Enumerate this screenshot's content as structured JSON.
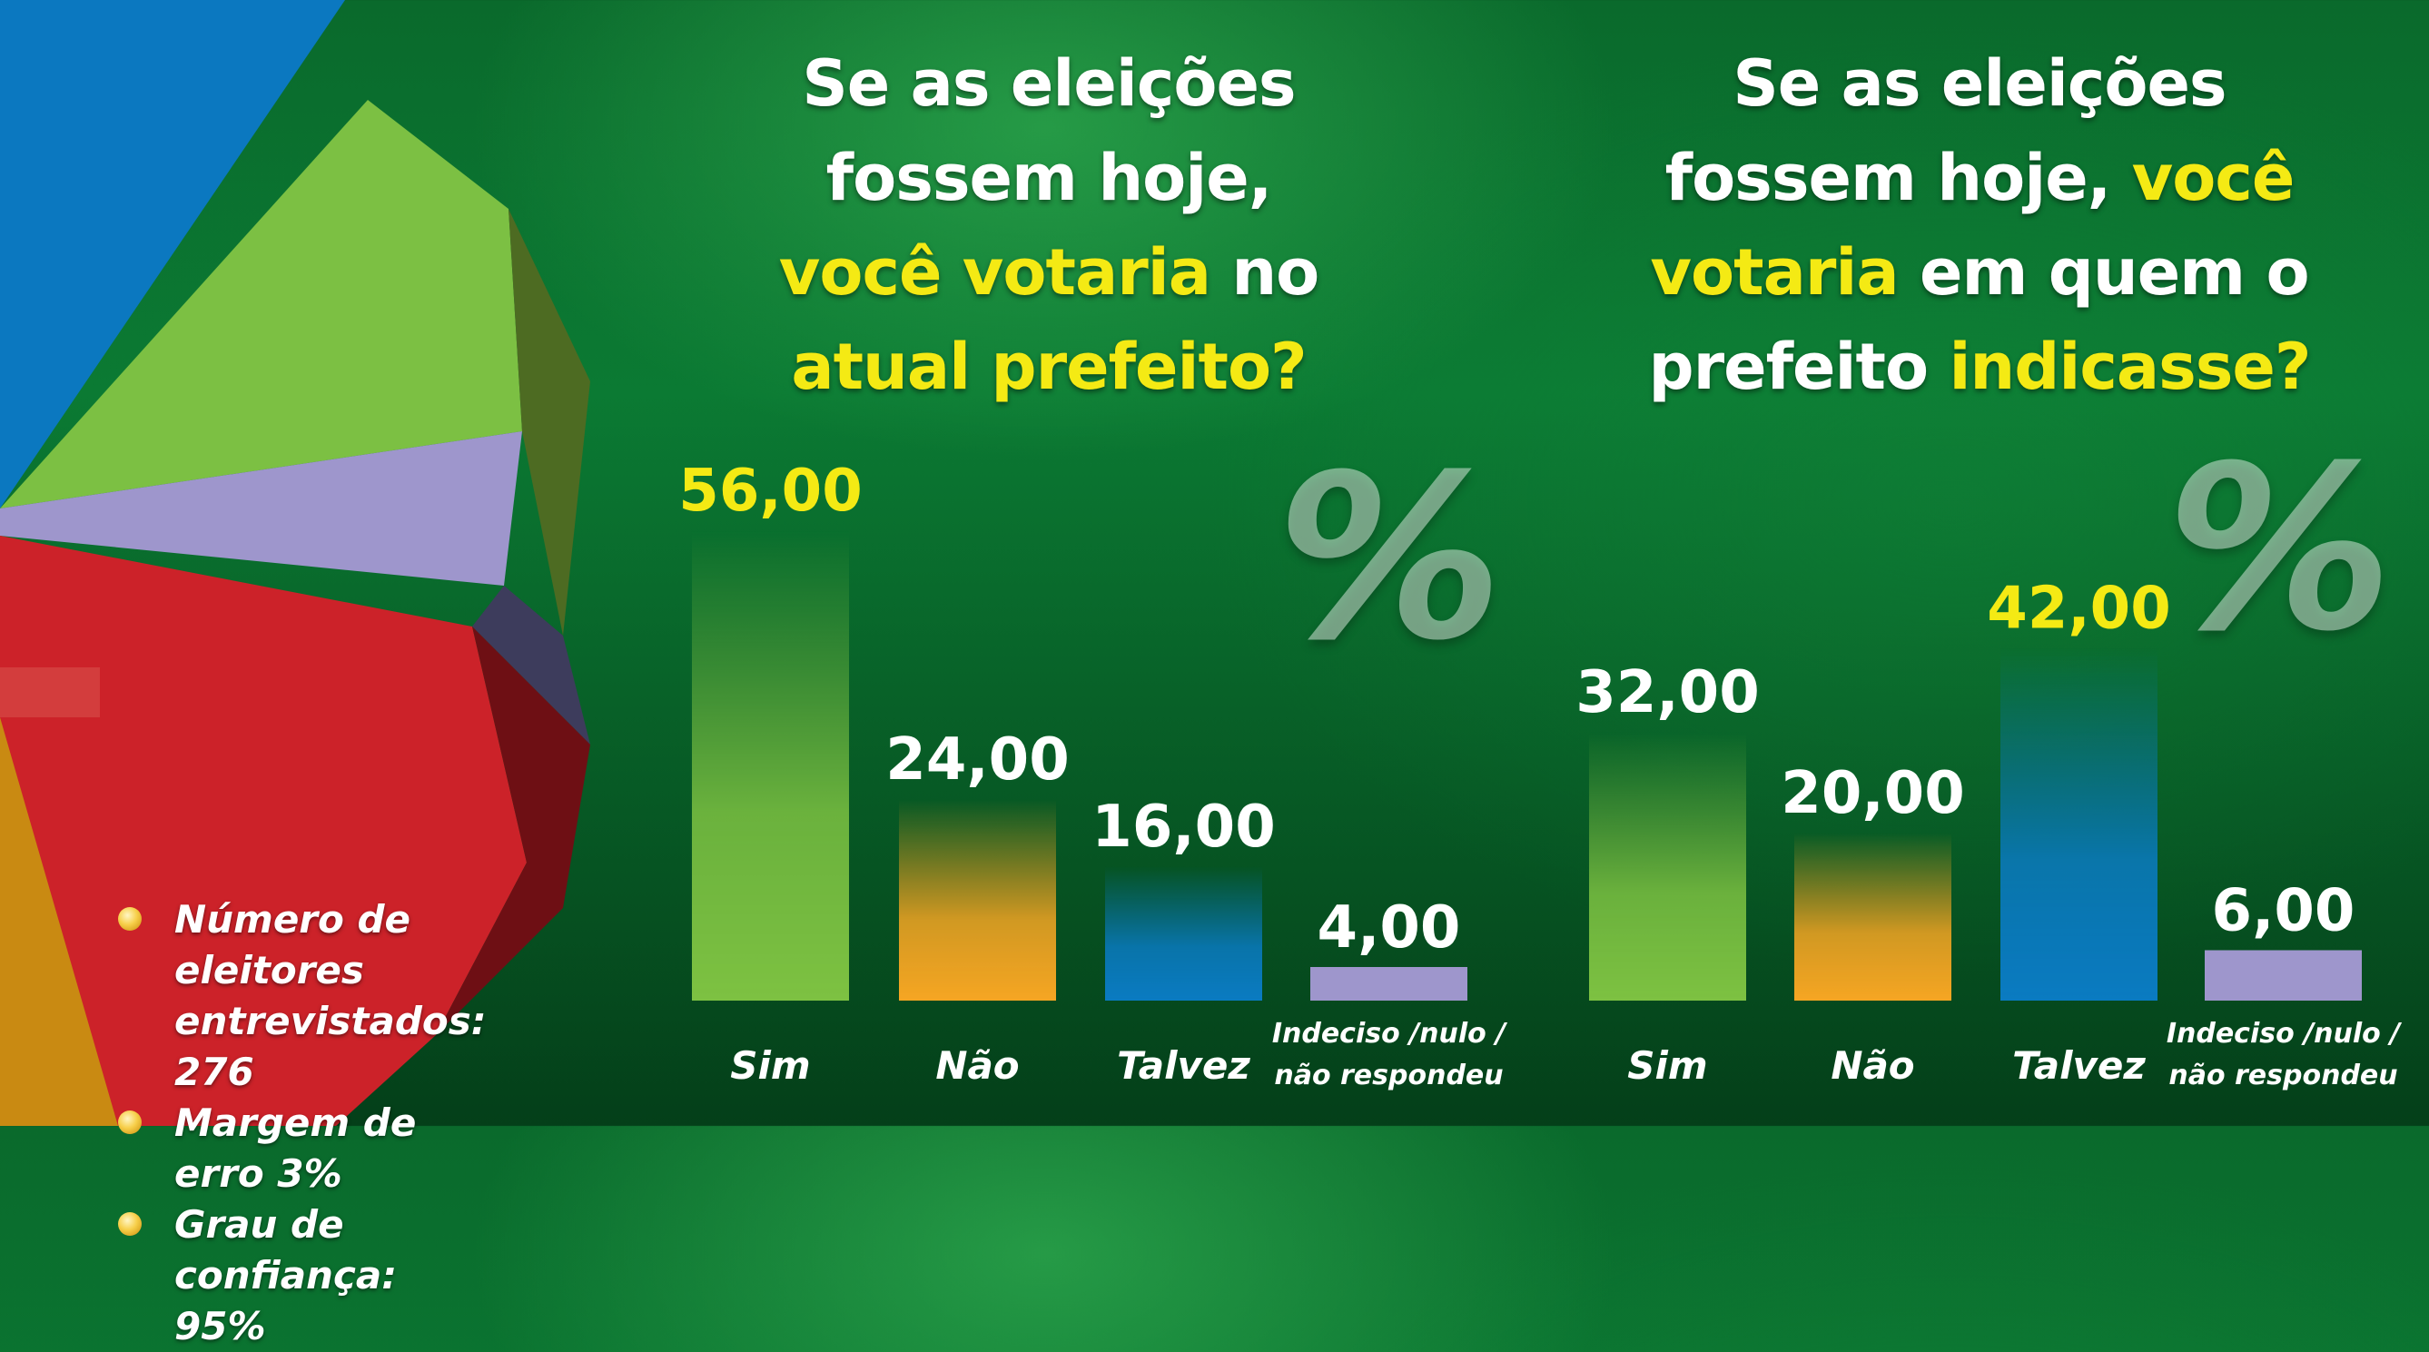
{
  "questions": [
    {
      "parts": [
        {
          "text": "Se as eleições",
          "hl": false,
          "br": true
        },
        {
          "text": "fossem hoje,",
          "hl": false,
          "br": true
        },
        {
          "text": "você votaria",
          "hl": true,
          "br": false
        },
        {
          "text": " no",
          "hl": false,
          "br": true
        },
        {
          "text": "atual prefeito?",
          "hl": true,
          "br": false
        }
      ]
    },
    {
      "parts": [
        {
          "text": "Se as eleições",
          "hl": false,
          "br": true
        },
        {
          "text": "fossem hoje, ",
          "hl": false,
          "br": false
        },
        {
          "text": "você",
          "hl": true,
          "br": true
        },
        {
          "text": "votaria",
          "hl": true,
          "br": false
        },
        {
          "text": " em quem o",
          "hl": false,
          "br": true
        },
        {
          "text": "prefeito ",
          "hl": false,
          "br": false
        },
        {
          "text": "indicasse?",
          "hl": true,
          "br": false
        }
      ]
    }
  ],
  "percent_symbol": "%",
  "stats": [
    "Número de eleitores",
    "entrevistados: 276",
    "Margem de erro 3%",
    "Grau de confiança: 95%"
  ],
  "colors": {
    "sim": "#7dc242",
    "nao": "#f6a623",
    "talvez": "#0a7bc2",
    "indeciso": "#9e96cc",
    "highlight_label": "#f4ea14",
    "label": "#ffffff"
  },
  "chart_data": [
    {
      "type": "bar",
      "categories": [
        "Sim",
        "Não",
        "Talvez",
        "Indeciso /nulo / não respondeu"
      ],
      "values": [
        56,
        24,
        16,
        4
      ],
      "value_labels": [
        "56,00",
        "24,00",
        "16,00",
        "4,00"
      ],
      "ylim": [
        0,
        60
      ],
      "grid": false,
      "legend": "none"
    },
    {
      "type": "bar",
      "categories": [
        "Sim",
        "Não",
        "Talvez",
        "Indeciso /nulo / não respondeu"
      ],
      "values": [
        32,
        20,
        42,
        6
      ],
      "value_labels": [
        "32,00",
        "20,00",
        "42,00",
        "6,00"
      ],
      "ylim": [
        0,
        60
      ],
      "grid": false,
      "legend": "none"
    }
  ]
}
